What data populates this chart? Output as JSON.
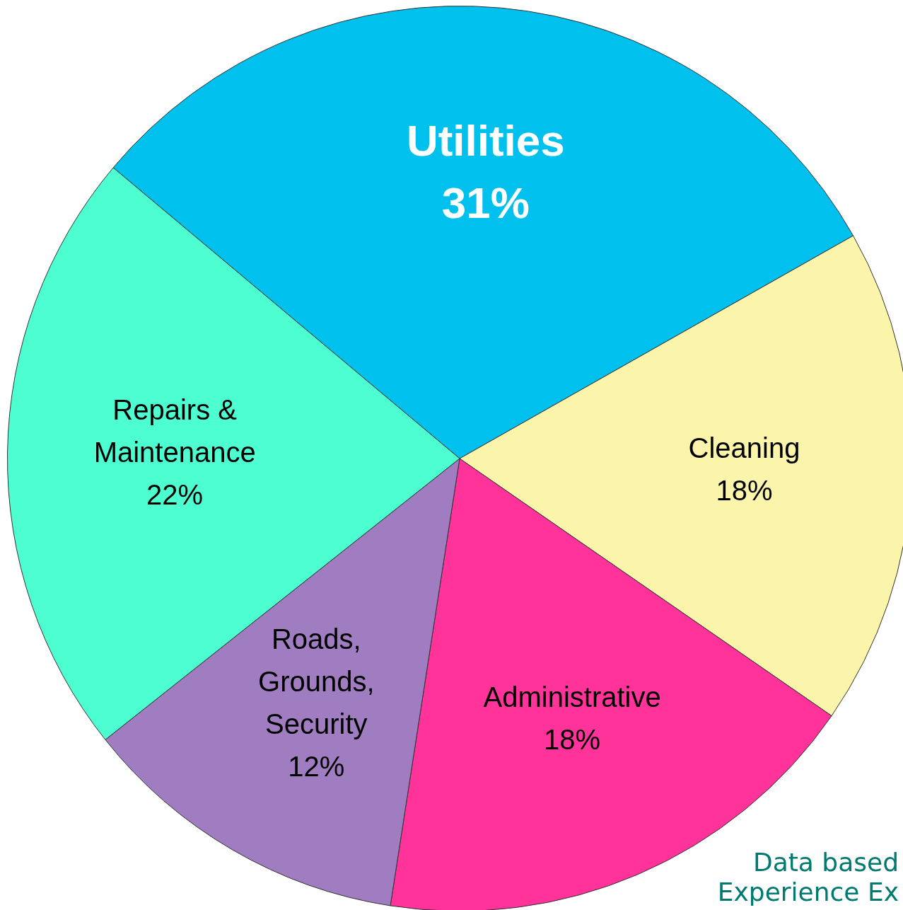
{
  "chart_data": {
    "type": "pie",
    "categories": [
      "Utilities",
      "Cleaning",
      "Administrative",
      "Roads, Grounds, Security",
      "Repairs & Maintenance"
    ],
    "values": [
      31,
      18,
      18,
      12,
      22
    ],
    "value_labels": [
      "31%",
      "18%",
      "18%",
      "12%",
      "22%"
    ],
    "colors": [
      "#00c0ee",
      "#faf5aa",
      "#ff3399",
      "#a07cc0",
      "#4dffd0"
    ],
    "annotations": [
      "Data based",
      "Experience Ex"
    ],
    "legend": false
  }
}
